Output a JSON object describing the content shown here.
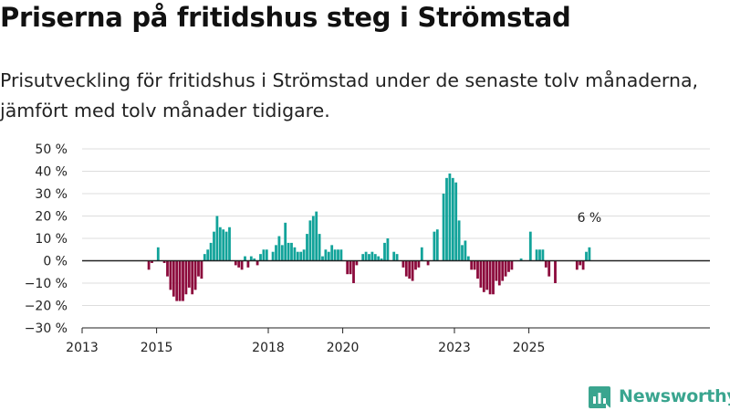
{
  "title": "Priserna på fritidshus steg i Strömstad",
  "subtitle": "Prisutveckling för fritidshus i Strömstad under de senaste tolv månaderna, jämfört med tolv månader tidigare.",
  "brand": {
    "name": "Newsworthy",
    "color": "#3aa58f"
  },
  "colors": {
    "positive": "#12a39a",
    "negative": "#8c0a3c",
    "axis": "#222222",
    "grid": "#dddddd"
  },
  "chart_data": {
    "type": "bar",
    "title": "Priserna på fritidshus steg i Strömstad",
    "xlabel": "",
    "ylabel": "",
    "unit": "%",
    "ylim": [
      -30,
      50
    ],
    "yticks": [
      -30,
      -20,
      -10,
      0,
      10,
      20,
      30,
      40,
      50
    ],
    "ytick_labels": [
      "−30 %",
      "−20 %",
      "−10 %",
      "0 %",
      "10 %",
      "20 %",
      "30 %",
      "40 %",
      "50 %"
    ],
    "x_start": {
      "year": 2013,
      "month": 1
    },
    "xticks": [
      2013,
      2015,
      2018,
      2020,
      2023,
      2025
    ],
    "annotation": {
      "text": "6 %",
      "target": "last"
    },
    "values": [
      0,
      0,
      0,
      0,
      0,
      0,
      0,
      0,
      0,
      0,
      0,
      0,
      0,
      0,
      0,
      0,
      0,
      0,
      0,
      0,
      0,
      -4,
      -1,
      0,
      6,
      0,
      -1,
      -7,
      -13,
      -16,
      -18,
      -18,
      -18,
      -15,
      -12,
      -15,
      -13,
      -7,
      -8,
      3,
      5,
      8,
      13,
      20,
      15,
      14,
      13,
      15,
      0,
      -2,
      -3,
      -4,
      2,
      -3,
      2,
      1,
      -2,
      3,
      5,
      5,
      0,
      4,
      7,
      11,
      7,
      17,
      8,
      8,
      6,
      4,
      4,
      5,
      12,
      18,
      20,
      22,
      12,
      2,
      5,
      4,
      7,
      5,
      5,
      5,
      0,
      -6,
      -6,
      -10,
      -2,
      0,
      3,
      4,
      3,
      4,
      3,
      2,
      1,
      8,
      10,
      0,
      4,
      3,
      0,
      -3,
      -7,
      -8,
      -9,
      -4,
      -3,
      6,
      0,
      -2,
      0,
      13,
      14,
      0,
      30,
      37,
      39,
      37,
      35,
      18,
      7,
      9,
      2,
      -4,
      -4,
      -8,
      -12,
      -14,
      -13,
      -15,
      -15,
      -9,
      -11,
      -9,
      -7,
      -5,
      -4,
      0,
      0,
      1,
      0,
      0,
      13,
      0,
      5,
      5,
      5,
      -3,
      -7,
      0,
      -10,
      0,
      0,
      0,
      0,
      0,
      0,
      -4,
      -2,
      -4,
      4,
      6
    ]
  }
}
